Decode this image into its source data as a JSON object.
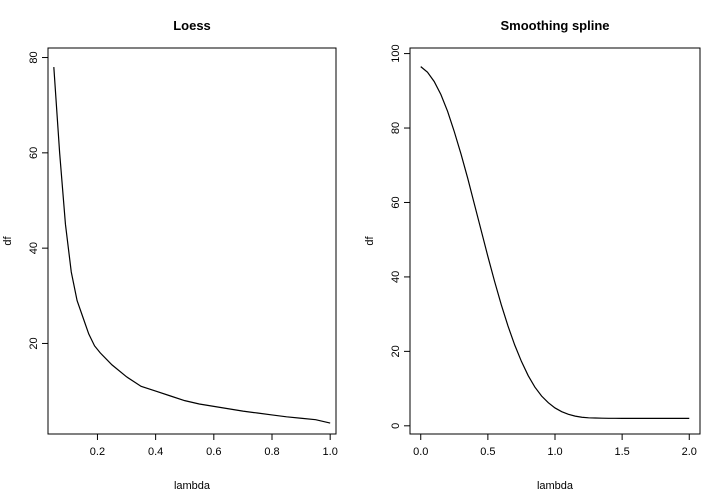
{
  "chart_data": [
    {
      "type": "line",
      "title": "Loess",
      "xlabel": "lambda",
      "ylabel": "df",
      "xlim": [
        0.03,
        1.02
      ],
      "ylim": [
        1,
        82
      ],
      "xticks": [
        0.2,
        0.4,
        0.6,
        0.8,
        1.0
      ],
      "xtick_labels": [
        "0.2",
        "0.4",
        "0.6",
        "0.8",
        "1.0"
      ],
      "yticks": [
        20,
        40,
        60,
        80
      ],
      "ytick_labels": [
        "20",
        "40",
        "60",
        "80"
      ],
      "series": [
        {
          "name": "df",
          "x": [
            0.05,
            0.07,
            0.09,
            0.11,
            0.13,
            0.15,
            0.17,
            0.19,
            0.21,
            0.25,
            0.3,
            0.35,
            0.4,
            0.45,
            0.5,
            0.55,
            0.6,
            0.65,
            0.7,
            0.75,
            0.8,
            0.85,
            0.9,
            0.95,
            1.0
          ],
          "y": [
            78,
            60,
            45,
            35,
            29,
            25.5,
            22,
            19.5,
            18,
            15.5,
            13,
            11,
            10,
            9,
            8,
            7.3,
            6.8,
            6.3,
            5.8,
            5.4,
            5,
            4.6,
            4.3,
            4,
            3.3
          ]
        }
      ]
    },
    {
      "type": "line",
      "title": "Smoothing spline",
      "xlabel": "lambda",
      "ylabel": "df",
      "xlim": [
        -0.08,
        2.08
      ],
      "ylim": [
        -2.2,
        101.5
      ],
      "xticks": [
        0.0,
        0.5,
        1.0,
        1.5,
        2.0
      ],
      "xtick_labels": [
        "0.0",
        "0.5",
        "1.0",
        "1.5",
        "2.0"
      ],
      "yticks": [
        0,
        20,
        40,
        60,
        80,
        100
      ],
      "ytick_labels": [
        "0",
        "20",
        "40",
        "60",
        "80",
        "100"
      ],
      "series": [
        {
          "name": "df",
          "x": [
            0.0,
            0.05,
            0.1,
            0.15,
            0.2,
            0.25,
            0.3,
            0.35,
            0.4,
            0.45,
            0.5,
            0.55,
            0.6,
            0.65,
            0.7,
            0.75,
            0.8,
            0.85,
            0.9,
            0.95,
            1.0,
            1.05,
            1.1,
            1.15,
            1.2,
            1.25,
            1.3,
            1.35,
            1.4,
            1.45,
            1.5,
            1.6,
            1.7,
            1.8,
            1.9,
            2.0
          ],
          "y": [
            96.5,
            95,
            92.5,
            89,
            84.5,
            79,
            73,
            66.5,
            59.5,
            52.5,
            45.5,
            38.8,
            32.5,
            26.8,
            21.7,
            17.3,
            13.5,
            10.4,
            8,
            6.2,
            4.8,
            3.8,
            3.1,
            2.6,
            2.3,
            2.15,
            2.1,
            2.05,
            2.02,
            2.01,
            2,
            2,
            2,
            2,
            2,
            2
          ]
        }
      ]
    }
  ]
}
